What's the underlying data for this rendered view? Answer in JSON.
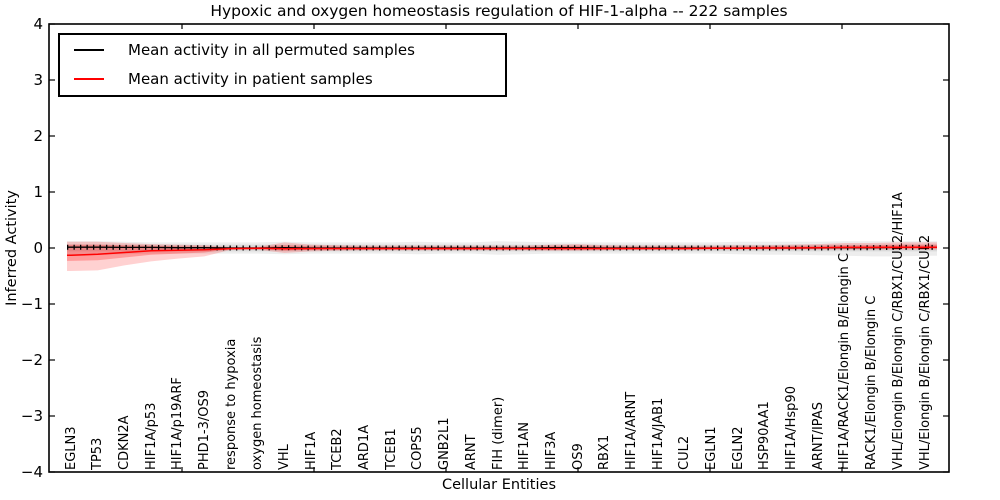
{
  "title": "Hypoxic and oxygen homeostasis regulation of HIF-1-alpha -- 222 samples",
  "axes": {
    "ylabel": "Inferred Activity",
    "xlabel": "Cellular Entities",
    "ytick_labels": [
      "4",
      "3",
      "2",
      "1",
      "0",
      "−1",
      "−2",
      "−3",
      "−4"
    ],
    "ytick_values": [
      4,
      3,
      2,
      1,
      0,
      -1,
      -2,
      -3,
      -4
    ]
  },
  "legend": {
    "items": [
      {
        "label": "Mean activity in all permuted samples",
        "color": "#000000"
      },
      {
        "label": "Mean activity in patient samples",
        "color": "#ff0000"
      }
    ]
  },
  "chart_data": {
    "type": "line",
    "title": "Hypoxic and oxygen homeostasis regulation of HIF-1-alpha -- 222 samples",
    "xlabel": "Cellular Entities",
    "ylabel": "Inferred Activity",
    "ylim": [
      -4,
      4
    ],
    "grid": false,
    "legend_position": "upper left",
    "sample_count_in_title": "222",
    "categories": [
      "EGLN3",
      "TP53",
      "CDKN2A",
      "HIF1A/p53",
      "HIF1A/p19ARF",
      "PHD1-3/OS9",
      "response to hypoxia",
      "oxygen homeostasis",
      "VHL",
      "HIF1A",
      "TCEB2",
      "ARD1A",
      "TCEB1",
      "COPS5",
      "GNB2L1",
      "ARNT",
      "FIH (dimer)",
      "HIF1AN",
      "HIF3A",
      "OS9",
      "RBX1",
      "HIF1A/ARNT",
      "HIF1A/JAB1",
      "CUL2",
      "EGLN1",
      "EGLN2",
      "HSP90AA1",
      "HIF1A/Hsp90",
      "ARNT/IPAS",
      "HIF1A/RACK1/Elongin B/Elongin C",
      "RACK1/Elongin B/Elongin C",
      "VHL/Elongin B/Elongin C/RBX1/CUL2/HIF1A",
      "VHL/Elongin B/Elongin C/RBX1/CUL2"
    ],
    "series": [
      {
        "name": "Mean activity in all permuted samples",
        "color": "#000000",
        "values": [
          0.015,
          0.015,
          0.01,
          0.01,
          0.005,
          0.005,
          0,
          0,
          0.005,
          0,
          0,
          0,
          0,
          0,
          0,
          0,
          0,
          0,
          0.005,
          0.005,
          0,
          0,
          0,
          0,
          0,
          0,
          0,
          0,
          0,
          0.005,
          0.005,
          0.01,
          0.01
        ]
      },
      {
        "name": "Mean activity in patient samples",
        "color": "#ff0000",
        "values": [
          -0.13,
          -0.11,
          -0.08,
          -0.05,
          -0.04,
          -0.03,
          -0.01,
          -0.005,
          -0.015,
          -0.01,
          -0.01,
          -0.01,
          -0.01,
          -0.01,
          -0.01,
          -0.01,
          -0.01,
          -0.01,
          -0.01,
          -0.01,
          -0.01,
          -0.01,
          -0.01,
          -0.01,
          -0.005,
          -0.005,
          0,
          0,
          0.005,
          0.01,
          0.01,
          0.015,
          0.015
        ]
      }
    ],
    "bands": [
      {
        "name": "permuted-range-outer",
        "color": "rgba(0,0,0,0.07)",
        "upper": [
          0.12,
          0.12,
          0.11,
          0.1,
          0.1,
          0.1,
          0.1,
          0.1,
          0.11,
          0.1,
          0.1,
          0.1,
          0.1,
          0.11,
          0.1,
          0.1,
          0.12,
          0.11,
          0.1,
          0.1,
          0.1,
          0.1,
          0.1,
          0.1,
          0.1,
          0.11,
          0.11,
          0.11,
          0.11,
          0.12,
          0.12,
          0.12,
          0.12
        ],
        "lower": [
          -0.12,
          -0.12,
          -0.11,
          -0.1,
          -0.1,
          -0.1,
          -0.1,
          -0.1,
          -0.11,
          -0.1,
          -0.1,
          -0.1,
          -0.1,
          -0.11,
          -0.1,
          -0.1,
          -0.12,
          -0.11,
          -0.1,
          -0.1,
          -0.1,
          -0.1,
          -0.1,
          -0.1,
          -0.1,
          -0.11,
          -0.12,
          -0.12,
          -0.13,
          -0.14,
          -0.15,
          -0.15,
          -0.14
        ]
      },
      {
        "name": "permuted-range-inner",
        "color": "rgba(0,0,0,0.08)",
        "upper": [
          0.06,
          0.06,
          0.06,
          0.06,
          0.06,
          0.06,
          0.06,
          0.06,
          0.06,
          0.06,
          0.06,
          0.06,
          0.06,
          0.06,
          0.06,
          0.06,
          0.06,
          0.06,
          0.06,
          0.06,
          0.06,
          0.06,
          0.06,
          0.06,
          0.06,
          0.06,
          0.06,
          0.06,
          0.06,
          0.06,
          0.06,
          0.06,
          0.06
        ],
        "lower": [
          -0.06,
          -0.06,
          -0.06,
          -0.06,
          -0.06,
          -0.06,
          -0.06,
          -0.06,
          -0.06,
          -0.06,
          -0.06,
          -0.06,
          -0.06,
          -0.06,
          -0.06,
          -0.06,
          -0.06,
          -0.06,
          -0.06,
          -0.06,
          -0.06,
          -0.06,
          -0.06,
          -0.06,
          -0.06,
          -0.06,
          -0.06,
          -0.06,
          -0.06,
          -0.06,
          -0.06,
          -0.06,
          -0.06
        ]
      },
      {
        "name": "patient-range-outer",
        "color": "rgba(255,0,0,0.18)",
        "upper": [
          0.11,
          0.11,
          0.09,
          0.07,
          0.06,
          0.05,
          0.02,
          0.02,
          0.1,
          0.06,
          0.05,
          0.04,
          0.04,
          0.04,
          0.04,
          0.04,
          0.04,
          0.04,
          0.06,
          0.07,
          0.05,
          0.04,
          0.04,
          0.04,
          0.04,
          0.05,
          0.05,
          0.06,
          0.07,
          0.09,
          0.09,
          0.1,
          0.1
        ],
        "lower": [
          -0.41,
          -0.4,
          -0.31,
          -0.24,
          -0.19,
          -0.15,
          -0.03,
          -0.03,
          -0.09,
          -0.06,
          -0.05,
          -0.04,
          -0.04,
          -0.04,
          -0.04,
          -0.04,
          -0.04,
          -0.04,
          -0.05,
          -0.05,
          -0.04,
          -0.03,
          -0.03,
          -0.03,
          -0.03,
          -0.03,
          -0.03,
          -0.03,
          -0.03,
          -0.03,
          -0.03,
          -0.03,
          -0.03
        ]
      },
      {
        "name": "patient-range-inner",
        "color": "rgba(255,0,0,0.26)",
        "upper": [
          0.06,
          0.06,
          0.05,
          0.04,
          0.03,
          0.025,
          0.01,
          0.01,
          0.05,
          0.03,
          0.025,
          0.02,
          0.02,
          0.02,
          0.02,
          0.02,
          0.02,
          0.02,
          0.03,
          0.04,
          0.025,
          0.02,
          0.02,
          0.02,
          0.02,
          0.025,
          0.03,
          0.035,
          0.04,
          0.05,
          0.05,
          0.06,
          0.06
        ],
        "lower": [
          -0.23,
          -0.22,
          -0.17,
          -0.12,
          -0.1,
          -0.08,
          -0.02,
          -0.015,
          -0.05,
          -0.03,
          -0.02,
          -0.02,
          -0.02,
          -0.02,
          -0.02,
          -0.02,
          -0.02,
          -0.02,
          -0.025,
          -0.025,
          -0.02,
          -0.015,
          -0.015,
          -0.015,
          -0.015,
          -0.015,
          -0.015,
          -0.015,
          -0.015,
          -0.015,
          -0.015,
          -0.015,
          -0.015
        ]
      }
    ]
  }
}
